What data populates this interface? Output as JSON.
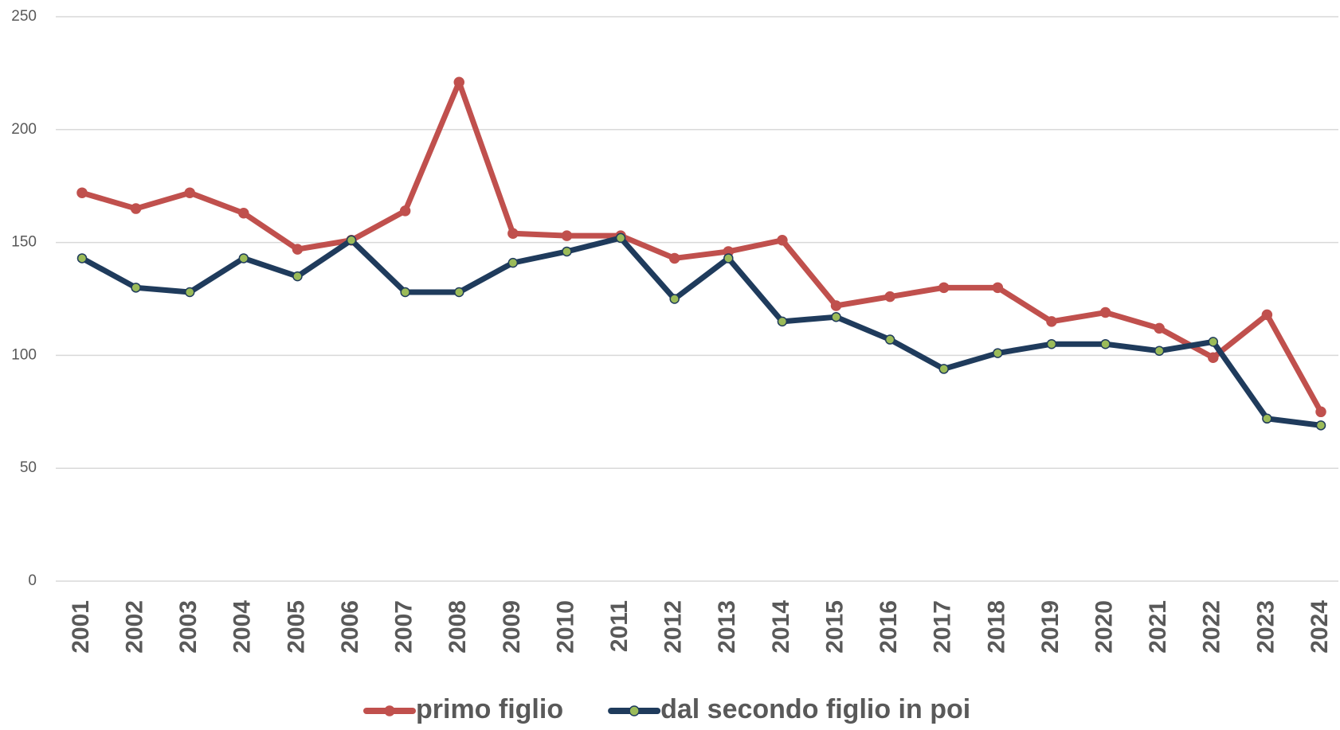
{
  "chart_data": {
    "type": "line",
    "categories": [
      "2001",
      "2002",
      "2003",
      "2004",
      "2005",
      "2006",
      "2007",
      "2008",
      "2009",
      "2010",
      "2011",
      "2012",
      "2013",
      "2014",
      "2015",
      "2016",
      "2017",
      "2018",
      "2019",
      "2020",
      "2021",
      "2022",
      "2023",
      "2024"
    ],
    "series": [
      {
        "name": "primo figlio",
        "color": "#c0504d",
        "marker_color": "#c0504d",
        "values": [
          172,
          165,
          172,
          163,
          147,
          151,
          164,
          221,
          154,
          153,
          153,
          143,
          146,
          151,
          122,
          126,
          130,
          130,
          115,
          119,
          112,
          99,
          118,
          75
        ]
      },
      {
        "name": "dal secondo figlio in poi",
        "color": "#1f3b5c",
        "marker_color": "#9bbb59",
        "values": [
          143,
          130,
          128,
          143,
          135,
          151,
          128,
          128,
          141,
          146,
          152,
          125,
          143,
          115,
          117,
          107,
          94,
          101,
          105,
          105,
          102,
          106,
          72,
          69
        ]
      }
    ],
    "ylim": [
      0,
      250
    ],
    "yticks": [
      0,
      50,
      100,
      150,
      200,
      250
    ],
    "grid": true,
    "legend": "bottom"
  }
}
